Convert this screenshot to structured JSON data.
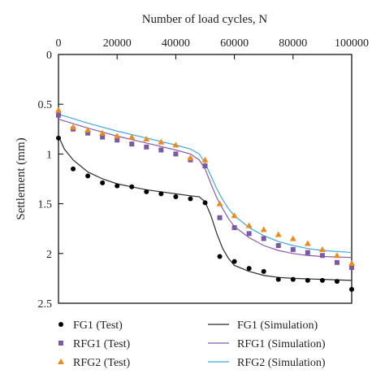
{
  "chart_data": {
    "type": "scatter",
    "xlabel": "Number of load cycles, N",
    "ylabel": "Settlement (mm)",
    "xlim": [
      0,
      100000
    ],
    "ylim": [
      0,
      2.5
    ],
    "y_axis_inverted": true,
    "x_axis_position": "top",
    "x_ticks": [
      0,
      20000,
      40000,
      60000,
      80000,
      100000
    ],
    "y_ticks": [
      0,
      0.5,
      1,
      1.5,
      2,
      2.5
    ],
    "x_tick_labels": [
      "0",
      "20000",
      "40000",
      "60000",
      "80000",
      "100000"
    ],
    "y_tick_labels": [
      "0",
      "0.5",
      "1",
      "1.5",
      "2",
      "2.5"
    ],
    "grid": false,
    "legend_placement": "bottom",
    "series": [
      {
        "name": "FG1 (Test)",
        "kind": "markers",
        "marker": "circle",
        "color": "#000000",
        "points": [
          [
            0,
            0.84
          ],
          [
            5000,
            1.15
          ],
          [
            10000,
            1.22
          ],
          [
            15000,
            1.29
          ],
          [
            20000,
            1.32
          ],
          [
            25000,
            1.33
          ],
          [
            30000,
            1.38
          ],
          [
            35000,
            1.4
          ],
          [
            40000,
            1.43
          ],
          [
            45000,
            1.45
          ],
          [
            50000,
            1.49
          ],
          [
            55000,
            2.03
          ],
          [
            60000,
            2.08
          ],
          [
            65000,
            2.15
          ],
          [
            70000,
            2.18
          ],
          [
            75000,
            2.26
          ],
          [
            80000,
            2.26
          ],
          [
            85000,
            2.27
          ],
          [
            90000,
            2.27
          ],
          [
            95000,
            2.28
          ],
          [
            100000,
            2.36
          ]
        ]
      },
      {
        "name": "RFG1 (Test)",
        "kind": "markers",
        "marker": "square",
        "color": "#7a5aa6",
        "points": [
          [
            0,
            0.61
          ],
          [
            5000,
            0.75
          ],
          [
            10000,
            0.79
          ],
          [
            15000,
            0.83
          ],
          [
            20000,
            0.86
          ],
          [
            25000,
            0.9
          ],
          [
            30000,
            0.93
          ],
          [
            35000,
            0.96
          ],
          [
            40000,
            1.0
          ],
          [
            45000,
            1.06
          ],
          [
            50000,
            1.12
          ],
          [
            55000,
            1.64
          ],
          [
            60000,
            1.74
          ],
          [
            65000,
            1.8
          ],
          [
            70000,
            1.85
          ],
          [
            75000,
            1.92
          ],
          [
            80000,
            1.96
          ],
          [
            85000,
            1.99
          ],
          [
            90000,
            2.02
          ],
          [
            95000,
            2.09
          ],
          [
            100000,
            2.14
          ]
        ]
      },
      {
        "name": "RFG2 (Test)",
        "kind": "markers",
        "marker": "triangle",
        "color": "#ee8a1c",
        "points": [
          [
            0,
            0.56
          ],
          [
            5000,
            0.73
          ],
          [
            10000,
            0.76
          ],
          [
            15000,
            0.79
          ],
          [
            20000,
            0.82
          ],
          [
            25000,
            0.83
          ],
          [
            30000,
            0.85
          ],
          [
            35000,
            0.88
          ],
          [
            40000,
            0.91
          ],
          [
            45000,
            1.04
          ],
          [
            50000,
            1.06
          ],
          [
            55000,
            1.5
          ],
          [
            60000,
            1.62
          ],
          [
            65000,
            1.72
          ],
          [
            70000,
            1.76
          ],
          [
            75000,
            1.81
          ],
          [
            80000,
            1.85
          ],
          [
            85000,
            1.9
          ],
          [
            90000,
            1.96
          ],
          [
            95000,
            2.02
          ],
          [
            100000,
            2.1
          ]
        ]
      },
      {
        "name": "FG1 (Simulation)",
        "kind": "line",
        "color": "#2b2b2b",
        "points": [
          [
            0,
            0.82
          ],
          [
            2000,
            0.95
          ],
          [
            5000,
            1.06
          ],
          [
            10000,
            1.18
          ],
          [
            15000,
            1.25
          ],
          [
            20000,
            1.3
          ],
          [
            25000,
            1.33
          ],
          [
            30000,
            1.36
          ],
          [
            35000,
            1.38
          ],
          [
            40000,
            1.4
          ],
          [
            45000,
            1.42
          ],
          [
            48000,
            1.43
          ],
          [
            50000,
            1.48
          ],
          [
            52000,
            1.62
          ],
          [
            54000,
            1.8
          ],
          [
            56000,
            1.95
          ],
          [
            58000,
            2.05
          ],
          [
            60000,
            2.12
          ],
          [
            65000,
            2.18
          ],
          [
            70000,
            2.22
          ],
          [
            75000,
            2.24
          ],
          [
            80000,
            2.25
          ],
          [
            90000,
            2.26
          ],
          [
            100000,
            2.27
          ]
        ]
      },
      {
        "name": "RFG1 (Simulation)",
        "kind": "line",
        "color": "#8a5bb0",
        "points": [
          [
            0,
            0.65
          ],
          [
            10000,
            0.74
          ],
          [
            20000,
            0.82
          ],
          [
            30000,
            0.89
          ],
          [
            40000,
            0.96
          ],
          [
            45000,
            1.0
          ],
          [
            48000,
            1.06
          ],
          [
            50000,
            1.15
          ],
          [
            52000,
            1.3
          ],
          [
            54000,
            1.44
          ],
          [
            56000,
            1.55
          ],
          [
            58000,
            1.65
          ],
          [
            60000,
            1.73
          ],
          [
            65000,
            1.84
          ],
          [
            70000,
            1.92
          ],
          [
            75000,
            1.97
          ],
          [
            80000,
            2.0
          ],
          [
            85000,
            2.02
          ],
          [
            90000,
            2.03
          ],
          [
            100000,
            2.04
          ]
        ]
      },
      {
        "name": "RFG2 (Simulation)",
        "kind": "line",
        "color": "#3fa9df",
        "points": [
          [
            0,
            0.6
          ],
          [
            10000,
            0.69
          ],
          [
            20000,
            0.77
          ],
          [
            30000,
            0.84
          ],
          [
            40000,
            0.91
          ],
          [
            45000,
            0.95
          ],
          [
            48000,
            1.0
          ],
          [
            50000,
            1.09
          ],
          [
            52000,
            1.22
          ],
          [
            54000,
            1.35
          ],
          [
            56000,
            1.46
          ],
          [
            58000,
            1.55
          ],
          [
            60000,
            1.62
          ],
          [
            65000,
            1.74
          ],
          [
            70000,
            1.82
          ],
          [
            75000,
            1.88
          ],
          [
            80000,
            1.92
          ],
          [
            85000,
            1.95
          ],
          [
            90000,
            1.97
          ],
          [
            100000,
            1.99
          ]
        ]
      }
    ]
  }
}
